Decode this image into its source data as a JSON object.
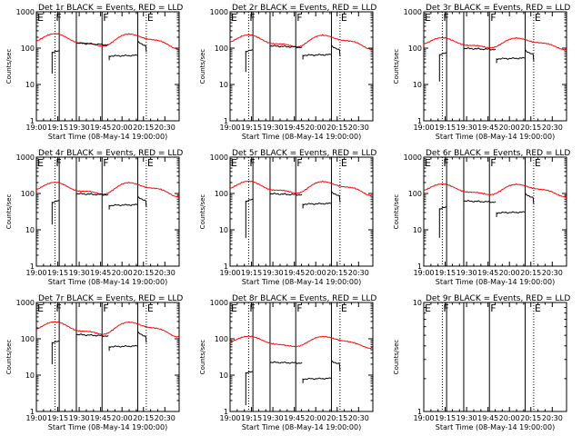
{
  "figure": {
    "time_ticks": [
      "19:00",
      "19:15",
      "19:30",
      "19:45",
      "20:00",
      "20:15",
      "20:30"
    ],
    "x_label": "Start Time (08-May-14 19:00:00)",
    "y_label": "Counts/sec",
    "y_ticks": [
      "1",
      "10",
      "100",
      "1000"
    ],
    "markers": [
      {
        "label": "E",
        "minute": 0,
        "style": "none"
      },
      {
        "label": "F",
        "minute": 13,
        "style": "dotted"
      },
      {
        "label": "",
        "minute": 16,
        "style": "solid"
      },
      {
        "label": "",
        "minute": 28,
        "style": "solid"
      },
      {
        "label": "F",
        "minute": 46,
        "style": "solid"
      },
      {
        "label": "",
        "minute": 71,
        "style": "solid"
      },
      {
        "label": "E",
        "minute": 77,
        "style": "dotted"
      }
    ],
    "colors": {
      "events": "#000000",
      "lld": "#ff0000",
      "axes": "#000000"
    }
  },
  "chart_data": [
    {
      "type": "line",
      "title": "Det 1r BLACK = Events, RED = LLD",
      "x_range_minutes": [
        0,
        100
      ],
      "y_scale": "log",
      "ylim": [
        1,
        1000
      ],
      "lld": {
        "base": 170,
        "amp1": 0.35,
        "amp2": 0.12,
        "phase": 0.0
      },
      "events": [
        {
          "x0": 11,
          "x1": 16,
          "y": 80,
          "slope": 0.08
        },
        {
          "x0": 28,
          "x1": 51,
          "y": 130,
          "slope": -0.12
        },
        {
          "x0": 51,
          "x1": 71,
          "y": 62,
          "slope": 0.04
        },
        {
          "x0": 71,
          "x1": 77,
          "y": 130,
          "slope": -0.35
        }
      ],
      "drop": 20
    },
    {
      "type": "line",
      "title": "Det 2r BLACK = Events, RED = LLD",
      "x_range_minutes": [
        0,
        100
      ],
      "y_scale": "log",
      "ylim": [
        1,
        1000
      ],
      "lld": {
        "base": 160,
        "amp1": 0.33,
        "amp2": 0.12,
        "phase": 0.0
      },
      "events": [
        {
          "x0": 11,
          "x1": 16,
          "y": 85,
          "slope": 0.08
        },
        {
          "x0": 28,
          "x1": 51,
          "y": 110,
          "slope": -0.1
        },
        {
          "x0": 51,
          "x1": 71,
          "y": 65,
          "slope": 0.04
        },
        {
          "x0": 71,
          "x1": 77,
          "y": 100,
          "slope": -0.3
        }
      ],
      "drop": 22
    },
    {
      "type": "line",
      "title": "Det 3r BLACK = Events, RED = LLD",
      "x_range_minutes": [
        0,
        100
      ],
      "y_scale": "log",
      "ylim": [
        1,
        1000
      ],
      "lld": {
        "base": 140,
        "amp1": 0.28,
        "amp2": 0.1,
        "phase": 0.0
      },
      "events": [
        {
          "x0": 11,
          "x1": 16,
          "y": 70,
          "slope": 0.1
        },
        {
          "x0": 28,
          "x1": 51,
          "y": 95,
          "slope": -0.08
        },
        {
          "x0": 51,
          "x1": 71,
          "y": 52,
          "slope": 0.04
        },
        {
          "x0": 71,
          "x1": 77,
          "y": 75,
          "slope": -0.3
        }
      ],
      "drop": 12
    },
    {
      "type": "line",
      "title": "Det 4r BLACK = Events, RED = LLD",
      "x_range_minutes": [
        0,
        100
      ],
      "y_scale": "log",
      "ylim": [
        1,
        1000
      ],
      "lld": {
        "base": 140,
        "amp1": 0.33,
        "amp2": 0.12,
        "phase": 0.0
      },
      "events": [
        {
          "x0": 11,
          "x1": 16,
          "y": 60,
          "slope": 0.1
        },
        {
          "x0": 28,
          "x1": 51,
          "y": 95,
          "slope": -0.08
        },
        {
          "x0": 51,
          "x1": 71,
          "y": 48,
          "slope": 0.04
        },
        {
          "x0": 71,
          "x1": 77,
          "y": 70,
          "slope": -0.3
        }
      ],
      "drop": 14
    },
    {
      "type": "line",
      "title": "Det 5r BLACK = Events, RED = LLD",
      "x_range_minutes": [
        0,
        100
      ],
      "y_scale": "log",
      "ylim": [
        1,
        1000
      ],
      "lld": {
        "base": 150,
        "amp1": 0.33,
        "amp2": 0.12,
        "phase": 0.0
      },
      "events": [
        {
          "x0": 11,
          "x1": 16,
          "y": 65,
          "slope": 0.1
        },
        {
          "x0": 28,
          "x1": 51,
          "y": 95,
          "slope": -0.08
        },
        {
          "x0": 51,
          "x1": 71,
          "y": 52,
          "slope": 0.04
        },
        {
          "x0": 71,
          "x1": 77,
          "y": 95,
          "slope": -0.3
        }
      ],
      "drop": 6
    },
    {
      "type": "line",
      "title": "Det 6r BLACK = Events, RED = LLD",
      "x_range_minutes": [
        0,
        100
      ],
      "y_scale": "log",
      "ylim": [
        1,
        1000
      ],
      "lld": {
        "base": 130,
        "amp1": 0.3,
        "amp2": 0.1,
        "phase": 0.0
      },
      "events": [
        {
          "x0": 11,
          "x1": 16,
          "y": 40,
          "slope": 0.1
        },
        {
          "x0": 28,
          "x1": 51,
          "y": 60,
          "slope": -0.08
        },
        {
          "x0": 51,
          "x1": 71,
          "y": 30,
          "slope": 0.04
        },
        {
          "x0": 71,
          "x1": 77,
          "y": 85,
          "slope": -0.3
        }
      ],
      "drop": 6
    },
    {
      "type": "line",
      "title": "Det 7r BLACK = Events, RED = LLD",
      "x_range_minutes": [
        0,
        100
      ],
      "y_scale": "log",
      "ylim": [
        1,
        1000
      ],
      "lld": {
        "base": 200,
        "amp1": 0.35,
        "amp2": 0.12,
        "phase": 0.0
      },
      "events": [
        {
          "x0": 11,
          "x1": 16,
          "y": 82,
          "slope": 0.08
        },
        {
          "x0": 28,
          "x1": 51,
          "y": 125,
          "slope": -0.1
        },
        {
          "x0": 51,
          "x1": 71,
          "y": 62,
          "slope": 0.04
        },
        {
          "x0": 71,
          "x1": 77,
          "y": 130,
          "slope": -0.35
        }
      ],
      "drop": 20
    },
    {
      "type": "line",
      "title": "Det 8r BLACK = Events, RED = LLD",
      "x_range_minutes": [
        0,
        100
      ],
      "y_scale": "log",
      "ylim": [
        1,
        1000
      ],
      "lld": {
        "base": 85,
        "amp1": 0.3,
        "amp2": 0.08,
        "phase": 0.0
      },
      "events": [
        {
          "x0": 11,
          "x1": 16,
          "y": 12,
          "slope": 0.05
        },
        {
          "x0": 28,
          "x1": 51,
          "y": 22,
          "slope": -0.05
        },
        {
          "x0": 51,
          "x1": 71,
          "y": 8,
          "slope": 0.03
        },
        {
          "x0": 71,
          "x1": 77,
          "y": 22,
          "slope": -0.2
        }
      ],
      "drop": 1.5
    },
    {
      "type": "line",
      "title": "Det 9r BLACK = Events, RED = LLD",
      "x_range_minutes": [
        0,
        100
      ],
      "y_scale": "log",
      "ylim": [
        1,
        10
      ],
      "lld": null,
      "events": [],
      "drop": null
    }
  ]
}
